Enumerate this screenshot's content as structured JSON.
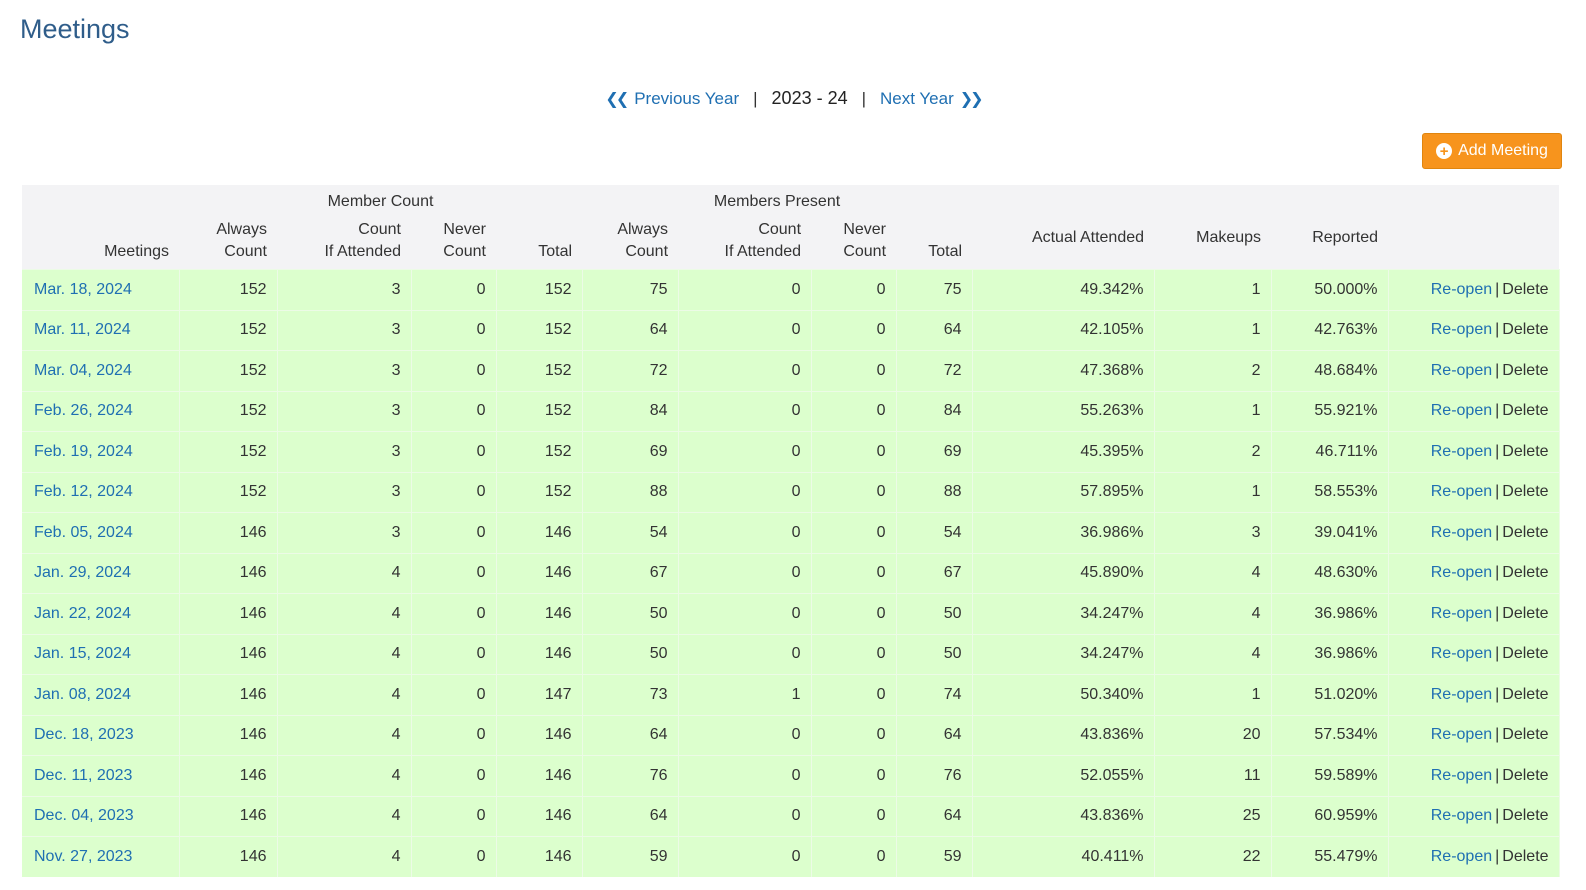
{
  "page": {
    "title": "Meetings"
  },
  "year_nav": {
    "previous_label": "Previous Year",
    "current": "2023 - 24",
    "next_label": "Next Year",
    "separator": "|"
  },
  "toolbar": {
    "add_label": "Add Meeting",
    "add_icon": "plus-circle-icon"
  },
  "table": {
    "group_headers": {
      "member_count": "Member Count",
      "members_present": "Members Present"
    },
    "headers": {
      "meetings": "Meetings",
      "always_count": [
        "Always",
        "Count"
      ],
      "count_if_attended": [
        "Count",
        "If Attended"
      ],
      "never_count": [
        "Never",
        "Count"
      ],
      "total": "Total",
      "actual_attended": "Actual Attended",
      "makeups": "Makeups",
      "reported": "Reported"
    },
    "action_labels": {
      "reopen": "Re-open",
      "separator": "|",
      "delete": "Delete"
    },
    "rows": [
      [
        "Mar. 18, 2024",
        "152",
        "3",
        "0",
        "152",
        "75",
        "0",
        "0",
        "75",
        "49.342%",
        "1",
        "50.000%"
      ],
      [
        "Mar. 11, 2024",
        "152",
        "3",
        "0",
        "152",
        "64",
        "0",
        "0",
        "64",
        "42.105%",
        "1",
        "42.763%"
      ],
      [
        "Mar. 04, 2024",
        "152",
        "3",
        "0",
        "152",
        "72",
        "0",
        "0",
        "72",
        "47.368%",
        "2",
        "48.684%"
      ],
      [
        "Feb. 26, 2024",
        "152",
        "3",
        "0",
        "152",
        "84",
        "0",
        "0",
        "84",
        "55.263%",
        "1",
        "55.921%"
      ],
      [
        "Feb. 19, 2024",
        "152",
        "3",
        "0",
        "152",
        "69",
        "0",
        "0",
        "69",
        "45.395%",
        "2",
        "46.711%"
      ],
      [
        "Feb. 12, 2024",
        "152",
        "3",
        "0",
        "152",
        "88",
        "0",
        "0",
        "88",
        "57.895%",
        "1",
        "58.553%"
      ],
      [
        "Feb. 05, 2024",
        "146",
        "3",
        "0",
        "146",
        "54",
        "0",
        "0",
        "54",
        "36.986%",
        "3",
        "39.041%"
      ],
      [
        "Jan. 29, 2024",
        "146",
        "4",
        "0",
        "146",
        "67",
        "0",
        "0",
        "67",
        "45.890%",
        "4",
        "48.630%"
      ],
      [
        "Jan. 22, 2024",
        "146",
        "4",
        "0",
        "146",
        "50",
        "0",
        "0",
        "50",
        "34.247%",
        "4",
        "36.986%"
      ],
      [
        "Jan. 15, 2024",
        "146",
        "4",
        "0",
        "146",
        "50",
        "0",
        "0",
        "50",
        "34.247%",
        "4",
        "36.986%"
      ],
      [
        "Jan. 08, 2024",
        "146",
        "4",
        "0",
        "147",
        "73",
        "1",
        "0",
        "74",
        "50.340%",
        "1",
        "51.020%"
      ],
      [
        "Dec. 18, 2023",
        "146",
        "4",
        "0",
        "146",
        "64",
        "0",
        "0",
        "64",
        "43.836%",
        "20",
        "57.534%"
      ],
      [
        "Dec. 11, 2023",
        "146",
        "4",
        "0",
        "146",
        "76",
        "0",
        "0",
        "76",
        "52.055%",
        "11",
        "59.589%"
      ],
      [
        "Dec. 04, 2023",
        "146",
        "4",
        "0",
        "146",
        "64",
        "0",
        "0",
        "64",
        "43.836%",
        "25",
        "60.959%"
      ],
      [
        "Nov. 27, 2023",
        "146",
        "4",
        "0",
        "146",
        "59",
        "0",
        "0",
        "59",
        "40.411%",
        "22",
        "55.479%"
      ]
    ]
  }
}
